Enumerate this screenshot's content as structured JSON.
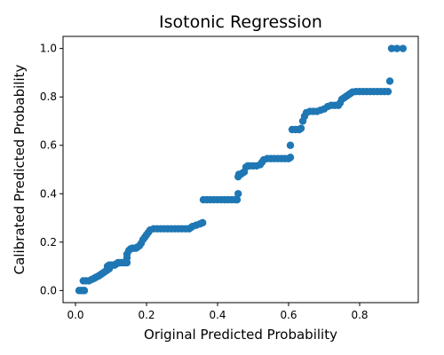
{
  "chart_data": {
    "type": "scatter",
    "title": "Isotonic Regression",
    "xlabel": "Original Predicted Probability",
    "ylabel": "Calibrated Predicted Probability",
    "xlim": [
      -0.035,
      0.965
    ],
    "ylim": [
      -0.05,
      1.05
    ],
    "xticks": [
      0.0,
      0.2,
      0.4,
      0.6,
      0.8
    ],
    "yticks": [
      0.0,
      0.2,
      0.4,
      0.6,
      0.8,
      1.0
    ],
    "xtick_labels": [
      "0.0",
      "0.2",
      "0.4",
      "0.6",
      "0.8"
    ],
    "ytick_labels": [
      "0.0",
      "0.2",
      "0.4",
      "0.6",
      "0.8",
      "1.0"
    ],
    "grid": false,
    "color": "#1f77b4",
    "series": [
      {
        "points": [
          [
            0.01,
            0.0
          ],
          [
            0.015,
            0.0
          ],
          [
            0.02,
            0.0
          ],
          [
            0.025,
            0.0
          ],
          [
            0.022,
            0.04
          ],
          [
            0.03,
            0.04
          ],
          [
            0.038,
            0.04
          ],
          [
            0.045,
            0.045
          ],
          [
            0.052,
            0.05
          ],
          [
            0.058,
            0.055
          ],
          [
            0.065,
            0.06
          ],
          [
            0.07,
            0.065
          ],
          [
            0.075,
            0.07
          ],
          [
            0.08,
            0.075
          ],
          [
            0.085,
            0.08
          ],
          [
            0.09,
            0.085
          ],
          [
            0.095,
            0.09
          ],
          [
            0.09,
            0.1
          ],
          [
            0.095,
            0.105
          ],
          [
            0.1,
            0.105
          ],
          [
            0.105,
            0.105
          ],
          [
            0.11,
            0.105
          ],
          [
            0.115,
            0.11
          ],
          [
            0.12,
            0.115
          ],
          [
            0.125,
            0.115
          ],
          [
            0.13,
            0.115
          ],
          [
            0.135,
            0.115
          ],
          [
            0.14,
            0.115
          ],
          [
            0.145,
            0.115
          ],
          [
            0.145,
            0.135
          ],
          [
            0.145,
            0.15
          ],
          [
            0.15,
            0.165
          ],
          [
            0.155,
            0.172
          ],
          [
            0.16,
            0.175
          ],
          [
            0.165,
            0.175
          ],
          [
            0.17,
            0.175
          ],
          [
            0.175,
            0.18
          ],
          [
            0.18,
            0.185
          ],
          [
            0.185,
            0.195
          ],
          [
            0.19,
            0.21
          ],
          [
            0.195,
            0.22
          ],
          [
            0.2,
            0.23
          ],
          [
            0.205,
            0.24
          ],
          [
            0.21,
            0.25
          ],
          [
            0.22,
            0.255
          ],
          [
            0.23,
            0.255
          ],
          [
            0.24,
            0.255
          ],
          [
            0.25,
            0.255
          ],
          [
            0.26,
            0.255
          ],
          [
            0.27,
            0.255
          ],
          [
            0.28,
            0.255
          ],
          [
            0.29,
            0.255
          ],
          [
            0.3,
            0.255
          ],
          [
            0.31,
            0.255
          ],
          [
            0.32,
            0.255
          ],
          [
            0.325,
            0.26
          ],
          [
            0.33,
            0.265
          ],
          [
            0.34,
            0.27
          ],
          [
            0.35,
            0.275
          ],
          [
            0.358,
            0.28
          ],
          [
            0.36,
            0.375
          ],
          [
            0.37,
            0.375
          ],
          [
            0.38,
            0.375
          ],
          [
            0.39,
            0.375
          ],
          [
            0.4,
            0.375
          ],
          [
            0.41,
            0.375
          ],
          [
            0.42,
            0.375
          ],
          [
            0.43,
            0.375
          ],
          [
            0.44,
            0.375
          ],
          [
            0.45,
            0.375
          ],
          [
            0.455,
            0.375
          ],
          [
            0.458,
            0.4
          ],
          [
            0.458,
            0.47
          ],
          [
            0.46,
            0.48
          ],
          [
            0.465,
            0.48
          ],
          [
            0.47,
            0.485
          ],
          [
            0.475,
            0.49
          ],
          [
            0.48,
            0.51
          ],
          [
            0.485,
            0.515
          ],
          [
            0.49,
            0.515
          ],
          [
            0.5,
            0.515
          ],
          [
            0.51,
            0.515
          ],
          [
            0.52,
            0.52
          ],
          [
            0.525,
            0.53
          ],
          [
            0.53,
            0.54
          ],
          [
            0.54,
            0.545
          ],
          [
            0.55,
            0.545
          ],
          [
            0.56,
            0.545
          ],
          [
            0.57,
            0.545
          ],
          [
            0.58,
            0.545
          ],
          [
            0.59,
            0.545
          ],
          [
            0.6,
            0.545
          ],
          [
            0.605,
            0.55
          ],
          [
            0.605,
            0.6
          ],
          [
            0.61,
            0.665
          ],
          [
            0.62,
            0.665
          ],
          [
            0.63,
            0.665
          ],
          [
            0.635,
            0.67
          ],
          [
            0.64,
            0.7
          ],
          [
            0.645,
            0.72
          ],
          [
            0.65,
            0.735
          ],
          [
            0.66,
            0.74
          ],
          [
            0.67,
            0.74
          ],
          [
            0.68,
            0.74
          ],
          [
            0.69,
            0.745
          ],
          [
            0.7,
            0.75
          ],
          [
            0.71,
            0.76
          ],
          [
            0.72,
            0.765
          ],
          [
            0.73,
            0.765
          ],
          [
            0.74,
            0.765
          ],
          [
            0.745,
            0.775
          ],
          [
            0.75,
            0.79
          ],
          [
            0.755,
            0.795
          ],
          [
            0.76,
            0.8
          ],
          [
            0.765,
            0.805
          ],
          [
            0.77,
            0.81
          ],
          [
            0.775,
            0.815
          ],
          [
            0.78,
            0.82
          ],
          [
            0.79,
            0.822
          ],
          [
            0.8,
            0.822
          ],
          [
            0.81,
            0.822
          ],
          [
            0.82,
            0.822
          ],
          [
            0.83,
            0.822
          ],
          [
            0.84,
            0.822
          ],
          [
            0.85,
            0.822
          ],
          [
            0.86,
            0.822
          ],
          [
            0.87,
            0.822
          ],
          [
            0.88,
            0.822
          ],
          [
            0.885,
            0.865
          ],
          [
            0.89,
            1.0
          ],
          [
            0.905,
            1.0
          ],
          [
            0.922,
            1.0
          ]
        ]
      }
    ]
  }
}
